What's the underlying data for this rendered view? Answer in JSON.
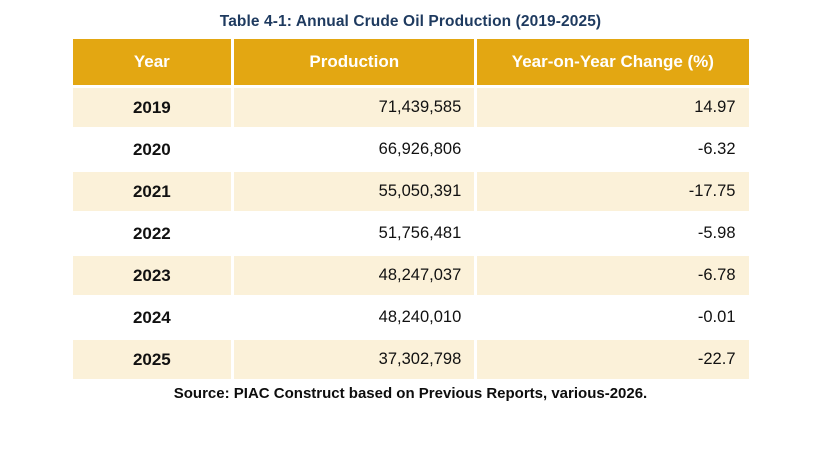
{
  "title": "Table 4-1: Annual Crude Oil Production (2019-2025)",
  "source_note": "Source: PIAC Construct based on Previous Reports, various-2026.",
  "colors": {
    "header_bg": "#E3A712",
    "alt_row_bg": "#FBF1D9",
    "title_text": "#1E3A5F",
    "header_text": "#FFFFFF",
    "body_text": "#111111"
  },
  "chart_data": {
    "type": "table",
    "title": "Table 4-1: Annual Crude Oil Production (2019-2025)",
    "columns": [
      "Year",
      "Production",
      "Year-on-Year Change (%)"
    ],
    "rows": [
      [
        "2019",
        "71,439,585",
        "14.97"
      ],
      [
        "2020",
        "66,926,806",
        "-6.32"
      ],
      [
        "2021",
        "55,050,391",
        "-17.75"
      ],
      [
        "2022",
        "51,756,481",
        "-5.98"
      ],
      [
        "2023",
        "48,247,037",
        "-6.78"
      ],
      [
        "2024",
        "48,240,010",
        "-0.01"
      ],
      [
        "2025",
        "37,302,798",
        "-22.7"
      ]
    ],
    "numeric_rows": [
      {
        "year": 2019,
        "production": 71439585,
        "yoy_change_pct": 14.97
      },
      {
        "year": 2020,
        "production": 66926806,
        "yoy_change_pct": -6.32
      },
      {
        "year": 2021,
        "production": 55050391,
        "yoy_change_pct": -17.75
      },
      {
        "year": 2022,
        "production": 51756481,
        "yoy_change_pct": -5.98
      },
      {
        "year": 2023,
        "production": 48247037,
        "yoy_change_pct": -6.78
      },
      {
        "year": 2024,
        "production": 48240010,
        "yoy_change_pct": -0.01
      },
      {
        "year": 2025,
        "production": 37302798,
        "yoy_change_pct": -22.7
      }
    ],
    "source": "Source: PIAC Construct based on Previous Reports, various-2026.",
    "layout": {
      "striped": "odd rows cream, even rows white",
      "year_align": "center",
      "production_align": "right",
      "change_align": "right"
    }
  }
}
